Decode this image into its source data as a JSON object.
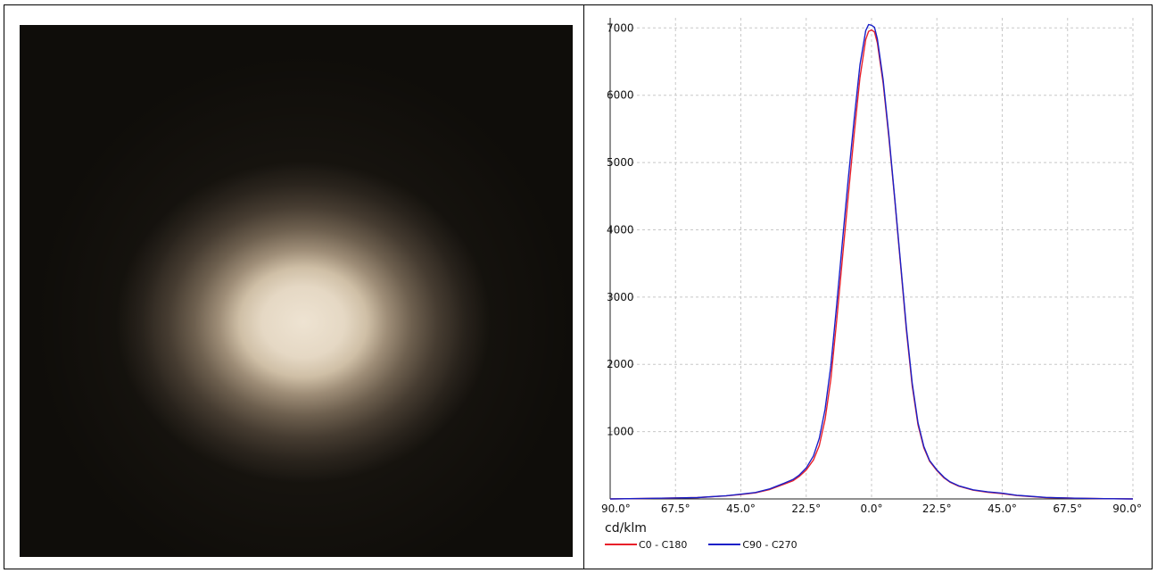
{
  "photo": {
    "alt": "",
    "spot_color": "#e8dccb",
    "background_color": "#17140f"
  },
  "chart_data": {
    "type": "line",
    "x_tick_labels": [
      "90.0°",
      "67.5°",
      "45.0°",
      "22.5°",
      "0.0°",
      "22.5°",
      "45.0°",
      "67.5°",
      "90.0°"
    ],
    "x_tick_values": [
      -90,
      -67.5,
      -45,
      -22.5,
      0,
      22.5,
      45,
      67.5,
      90
    ],
    "xlim": [
      -90,
      90
    ],
    "y_tick_labels": [
      "1000",
      "2000",
      "3000",
      "4000",
      "5000",
      "6000",
      "7000"
    ],
    "y_tick_values": [
      1000,
      2000,
      3000,
      4000,
      5000,
      6000,
      7000
    ],
    "ylim": [
      0,
      7150
    ],
    "ylabel": "cd/klm",
    "grid": true,
    "legend_position": "bottom-left",
    "series": [
      {
        "name": "C0 - C180",
        "color": "#e8202a",
        "x": [
          -90,
          -80,
          -70,
          -60,
          -50,
          -45,
          -40,
          -35,
          -30,
          -27,
          -25,
          -22.5,
          -20,
          -18,
          -16,
          -14,
          -12,
          -10,
          -8,
          -6,
          -4,
          -2,
          -1,
          0,
          1,
          2,
          4,
          6,
          8,
          10,
          12,
          14,
          16,
          18,
          20,
          22.5,
          25,
          27,
          30,
          35,
          40,
          45,
          50,
          60,
          70,
          80,
          90
        ],
        "values": [
          0,
          5,
          12,
          20,
          45,
          65,
          90,
          140,
          220,
          270,
          330,
          430,
          580,
          790,
          1180,
          1780,
          2650,
          3580,
          4520,
          5420,
          6260,
          6830,
          6950,
          6970,
          6940,
          6780,
          6180,
          5360,
          4450,
          3470,
          2500,
          1680,
          1100,
          760,
          560,
          420,
          310,
          250,
          190,
          130,
          100,
          80,
          50,
          20,
          10,
          4,
          0
        ]
      },
      {
        "name": "C90 - C270",
        "color": "#1a20c8",
        "x": [
          -90,
          -80,
          -70,
          -60,
          -50,
          -45,
          -40,
          -35,
          -30,
          -27,
          -25,
          -22.5,
          -20,
          -18,
          -16,
          -14,
          -12,
          -10,
          -8,
          -6,
          -4,
          -2,
          -1,
          0,
          1,
          2,
          4,
          6,
          8,
          10,
          12,
          14,
          16,
          18,
          20,
          22.5,
          25,
          27,
          30,
          35,
          40,
          45,
          50,
          60,
          70,
          80,
          90
        ],
        "values": [
          0,
          5,
          12,
          20,
          48,
          70,
          95,
          150,
          235,
          290,
          350,
          460,
          640,
          900,
          1330,
          1980,
          2880,
          3830,
          4770,
          5640,
          6450,
          6960,
          7050,
          7040,
          7010,
          6840,
          6230,
          5400,
          4470,
          3500,
          2540,
          1720,
          1130,
          780,
          570,
          430,
          320,
          255,
          195,
          135,
          105,
          85,
          55,
          22,
          10,
          4,
          0
        ]
      }
    ]
  }
}
